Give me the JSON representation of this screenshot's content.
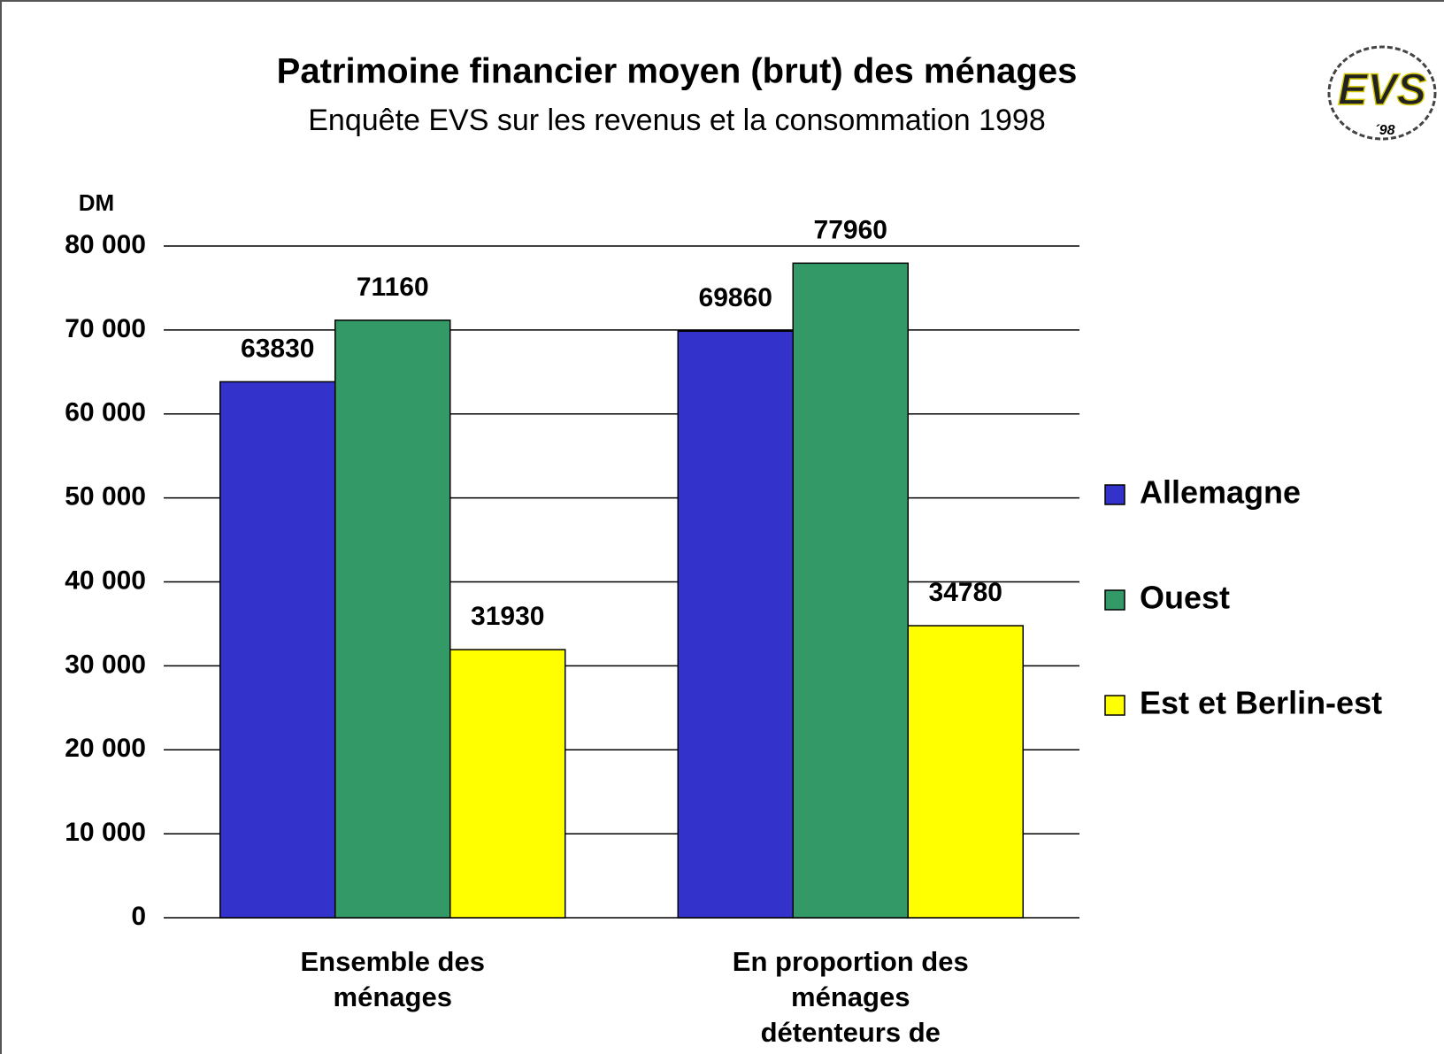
{
  "chart_data": {
    "type": "bar",
    "title": "Patrimoine financier moyen (brut) des ménages",
    "subtitle": "Enquête EVS sur les revenus et la consommation 1998",
    "y_label": "DM",
    "logo": {
      "text": "EVS",
      "year": "´98"
    },
    "categories": [
      "Ensemble des ménages",
      "En proportion des ménages détenteurs de patrimoine financier"
    ],
    "series": [
      {
        "name": "Allemagne",
        "color": "#3333cc",
        "values": [
          63830,
          69860
        ]
      },
      {
        "name": "Ouest",
        "color": "#339966",
        "values": [
          71160,
          77960
        ]
      },
      {
        "name": "Est et Berlin-est",
        "color": "#ffff00",
        "values": [
          31930,
          34780
        ]
      }
    ],
    "ylim": [
      0,
      80000
    ],
    "yticks": [
      0,
      {
        "value": 10000,
        "label": "10 000"
      },
      {
        "value": 20000,
        "label": "20 000"
      },
      {
        "value": 30000,
        "label": "30 000"
      },
      {
        "value": 40000,
        "label": "40 000"
      },
      {
        "value": 50000,
        "label": "50 000"
      },
      {
        "value": 60000,
        "label": "60 000"
      },
      {
        "value": 70000,
        "label": "70 000"
      },
      {
        "value": 80000,
        "label": "80 000"
      }
    ],
    "grid": true,
    "legend": "right"
  }
}
